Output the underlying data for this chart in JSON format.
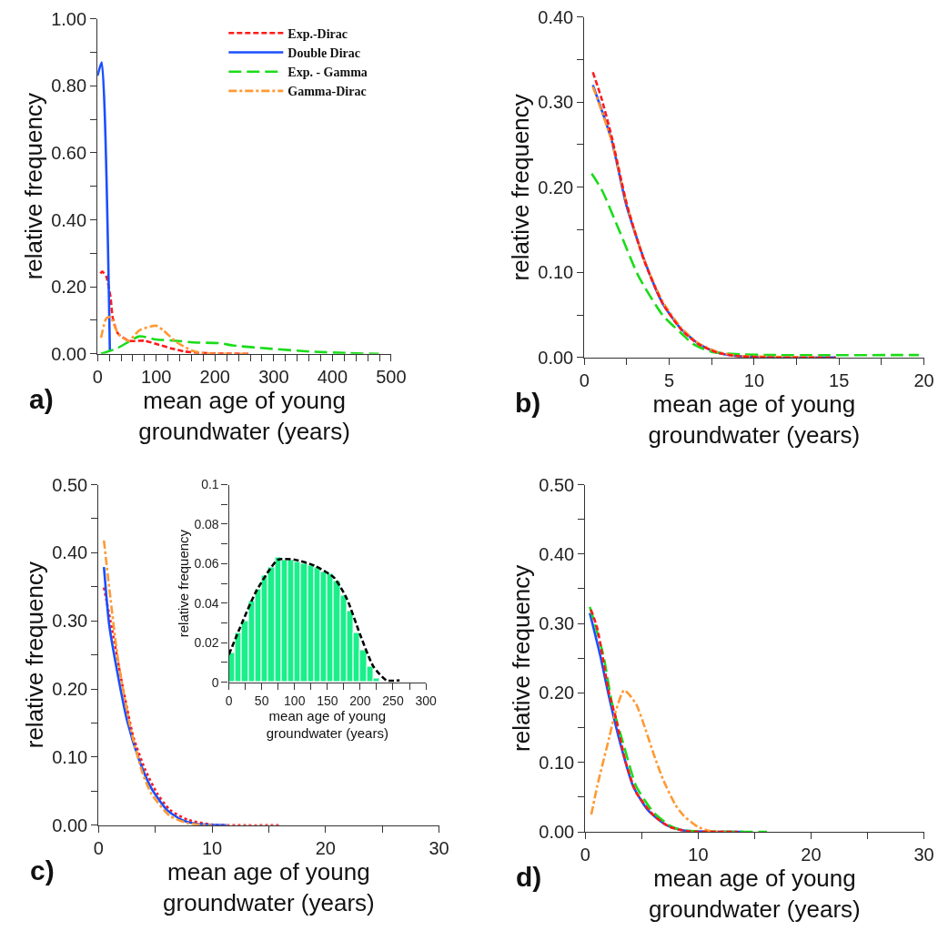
{
  "chart_data": [
    {
      "type": "line",
      "xlabel": "mean age of young groundwater (years)",
      "ylabel": "relative frequency",
      "annotations": [
        "a)"
      ],
      "legend": "top right",
      "marker": "none",
      "xlim": [
        0,
        500
      ],
      "xticks": [
        0,
        {
          "value": 20,
          "label": null
        },
        {
          "value": 40,
          "label": null
        },
        {
          "value": 60,
          "label": null
        },
        {
          "value": 80,
          "label": null
        },
        100,
        {
          "value": 120,
          "label": null
        },
        {
          "value": 140,
          "label": null
        },
        {
          "value": 160,
          "label": null
        },
        {
          "value": 180,
          "label": null
        },
        200,
        {
          "value": 220,
          "label": null
        },
        {
          "value": 240,
          "label": null
        },
        {
          "value": 260,
          "label": null
        },
        {
          "value": 280,
          "label": null
        },
        300,
        {
          "value": 320,
          "label": null
        },
        {
          "value": 340,
          "label": null
        },
        {
          "value": 360,
          "label": null
        },
        {
          "value": 380,
          "label": null
        },
        400,
        {
          "value": 420,
          "label": null
        },
        {
          "value": 440,
          "label": null
        },
        {
          "value": 460,
          "label": null
        },
        {
          "value": 480,
          "label": null
        },
        500
      ],
      "ylim": [
        0,
        1
      ],
      "yticks": [
        {
          "value": 0,
          "label": "0.00"
        },
        {
          "value": 0.1,
          "label": null
        },
        {
          "value": 0.2,
          "label": "0.20"
        },
        {
          "value": 0.3,
          "label": null
        },
        {
          "value": 0.4,
          "label": "0.40"
        },
        {
          "value": 0.5,
          "label": null
        },
        {
          "value": 0.6,
          "label": "0.60"
        },
        {
          "value": 0.7,
          "label": null
        },
        {
          "value": 0.8,
          "label": "0.80"
        },
        {
          "value": 0.9,
          "label": null
        },
        {
          "value": 1,
          "label": "1.00"
        }
      ],
      "series": [
        {
          "name": "Exp.-Dirac",
          "color": "#ff1a1a",
          "line_style": "dashed",
          "x": [
            5,
            8,
            15,
            22,
            26,
            35,
            53,
            80,
            99,
            126,
            148,
            171,
            200,
            257
          ],
          "values": [
            0.24,
            0.246,
            0.23,
            0.17,
            0.106,
            0.06,
            0.039,
            0.039,
            0.03,
            0.016,
            0.007,
            0.003,
            0.001,
            0
          ]
        },
        {
          "name": "Double Dirac",
          "color": "#1a4fff",
          "line_style": "solid",
          "x": [
            0,
            7,
            21
          ],
          "values": [
            0.83,
            0.87,
            0.007
          ]
        },
        {
          "name": "Exp. - Gamma",
          "color": "#1adc1a",
          "line_style": "longdash",
          "x": [
            6,
            35,
            71,
            99,
            135,
            162,
            207,
            230,
            289,
            361,
            429,
            479
          ],
          "values": [
            0,
            0.018,
            0.052,
            0.043,
            0.039,
            0.034,
            0.032,
            0.025,
            0.016,
            0.007,
            0.002,
            0
          ]
        },
        {
          "name": "Gamma-Dirac",
          "color": "#ff9933",
          "line_style": "dashdot",
          "x": [
            6,
            15,
            22,
            35,
            53,
            71,
            99,
            112,
            135,
            162,
            180,
            257
          ],
          "values": [
            0.048,
            0.106,
            0.11,
            0.06,
            0.039,
            0.07,
            0.084,
            0.07,
            0.034,
            0.009,
            0.002,
            0
          ]
        }
      ]
    },
    {
      "type": "line",
      "xlabel": "mean age of young groundwater (years)",
      "ylabel": "relative frequency",
      "annotations": [
        "b)"
      ],
      "marker": "none",
      "xlim": [
        0,
        20
      ],
      "xticks": [
        0,
        {
          "value": 2.5,
          "label": null
        },
        5,
        {
          "value": 7.5,
          "label": null
        },
        10,
        {
          "value": 12.5,
          "label": null
        },
        15,
        {
          "value": 17.5,
          "label": null
        },
        20
      ],
      "ylim": [
        0,
        0.4
      ],
      "yticks": [
        {
          "value": 0,
          "label": "0.00"
        },
        {
          "value": 0.05,
          "label": null
        },
        {
          "value": 0.1,
          "label": "0.10"
        },
        {
          "value": 0.15,
          "label": null
        },
        {
          "value": 0.2,
          "label": "0.20"
        },
        {
          "value": 0.25,
          "label": null
        },
        {
          "value": 0.3,
          "label": "0.30"
        },
        {
          "value": 0.35,
          "label": null
        },
        {
          "value": 0.4,
          "label": "0.40"
        }
      ],
      "series": [
        {
          "color": "#1a4fff",
          "line_style": "solid",
          "x": [
            0.5,
            1.58,
            2.47,
            3.54,
            4.6,
            5.68,
            6.74,
            7.8,
            8.9,
            11,
            14.8
          ],
          "values": [
            0.32,
            0.257,
            0.179,
            0.114,
            0.064,
            0.034,
            0.016,
            0.006,
            0.002,
            0,
            0
          ]
        },
        {
          "color": "#1adc1a",
          "line_style": "longdash",
          "x": [
            0.43,
            1.05,
            2.12,
            3.18,
            4.6,
            5.68,
            6.4,
            7.46,
            8.9,
            11,
            19.7
          ],
          "values": [
            0.216,
            0.196,
            0.146,
            0.096,
            0.05,
            0.029,
            0.016,
            0.007,
            0.004,
            0.003,
            0.003
          ]
        },
        {
          "color": "#ff9933",
          "line_style": "dashdot",
          "x": [
            0.5,
            1.6,
            2.5,
            3.5,
            4.6,
            5.7,
            6.7,
            7.8,
            9,
            11,
            14
          ],
          "values": [
            0.318,
            0.255,
            0.18,
            0.116,
            0.066,
            0.035,
            0.017,
            0.007,
            0.002,
            0.001,
            0
          ]
        },
        {
          "color": "#ff1a1a",
          "line_style": "dashed",
          "x": [
            0.5,
            1.0,
            1.6,
            2.5,
            3.5,
            4.6,
            5.7,
            6.7,
            7.8,
            8.9,
            11,
            14.8
          ],
          "values": [
            0.335,
            0.305,
            0.26,
            0.18,
            0.115,
            0.064,
            0.033,
            0.016,
            0.006,
            0.002,
            0,
            0
          ]
        }
      ]
    },
    {
      "type": "line",
      "xlabel": "mean age of young groundwater (years)",
      "ylabel": "relative frequency",
      "annotations": [
        "c)"
      ],
      "marker": "none",
      "xlim": [
        0,
        30
      ],
      "xticks": [
        0,
        {
          "value": 5,
          "label": null
        },
        10,
        {
          "value": 15,
          "label": null
        },
        20,
        {
          "value": 25,
          "label": null
        },
        30
      ],
      "ylim": [
        0,
        0.5
      ],
      "yticks": [
        {
          "value": 0,
          "label": "0.00"
        },
        {
          "value": 0.05,
          "label": null
        },
        {
          "value": 0.1,
          "label": "0.10"
        },
        {
          "value": 0.15,
          "label": null
        },
        {
          "value": 0.2,
          "label": "0.20"
        },
        {
          "value": 0.25,
          "label": null
        },
        {
          "value": 0.3,
          "label": "0.30"
        },
        {
          "value": 0.35,
          "label": null
        },
        {
          "value": 0.4,
          "label": "0.40"
        },
        {
          "value": 0.45,
          "label": null
        },
        {
          "value": 0.5,
          "label": "0.50"
        }
      ],
      "series": [
        {
          "color": "#ff1a1a",
          "line_style": "dotted",
          "x": [
            0.48,
            1.2,
            2,
            3.07,
            4.13,
            5.2,
            6.27,
            7.87,
            10,
            16.1
          ],
          "values": [
            0.349,
            0.287,
            0.215,
            0.13,
            0.081,
            0.046,
            0.023,
            0.008,
            0.001,
            0
          ]
        },
        {
          "color": "#1a4fff",
          "line_style": "solid",
          "x": [
            0.48,
            0.93,
            1.47,
            2.53,
            3.6,
            4.67,
            6,
            7.33,
            8.67,
            11.3
          ],
          "values": [
            0.379,
            0.296,
            0.242,
            0.153,
            0.095,
            0.054,
            0.023,
            0.008,
            0.002,
            0
          ]
        },
        {
          "color": "#ff9933",
          "line_style": "dashdot",
          "x": [
            0.48,
            1.07,
            1.73,
            2.8,
            3.87,
            4.67,
            6.27,
            7.87,
            10
          ],
          "values": [
            0.418,
            0.331,
            0.242,
            0.144,
            0.077,
            0.046,
            0.014,
            0.003,
            0
          ]
        }
      ]
    },
    {
      "type": "histogram",
      "xlabel": "mean age of young groundwater (years)",
      "ylabel": "relative frequency",
      "color": "#1aef8a",
      "bins": [
        0,
        10,
        20,
        30,
        40,
        50,
        60,
        70,
        80,
        90,
        100,
        110,
        120,
        130,
        140,
        150,
        160,
        170,
        180,
        190,
        200,
        210,
        220,
        230
      ],
      "values": [
        0.015,
        0.025,
        0.031,
        0.041,
        0.047,
        0.054,
        0.058,
        0.063,
        0.062,
        0.062,
        0.061,
        0.06,
        0.059,
        0.058,
        0.056,
        0.055,
        0.051,
        0.044,
        0.036,
        0.025,
        0.016,
        0.008,
        0.002
      ],
      "xlim": [
        0,
        300
      ],
      "xticks": [
        0,
        {
          "value": 25,
          "label": null
        },
        50,
        {
          "value": 75,
          "label": null
        },
        100,
        {
          "value": 125,
          "label": null
        },
        150,
        {
          "value": 175,
          "label": null
        },
        200,
        {
          "value": 225,
          "label": null
        },
        250,
        {
          "value": 275,
          "label": null
        },
        300
      ],
      "ylim": [
        0,
        0.1
      ],
      "yticks": [
        0,
        {
          "value": 0.01,
          "label": null
        },
        0.02,
        {
          "value": 0.03,
          "label": null
        },
        0.04,
        {
          "value": 0.05,
          "label": null
        },
        0.06,
        {
          "value": 0.07,
          "label": null
        },
        0.08,
        {
          "value": 0.09,
          "label": null
        },
        0.1
      ],
      "series": [
        {
          "type": "line",
          "color": "#000000",
          "line_style": "dashed",
          "x": [
            0,
            20,
            40,
            60,
            75,
            100,
            130,
            160,
            180,
            200,
            220,
            240,
            260
          ],
          "values": [
            0.014,
            0.03,
            0.045,
            0.056,
            0.062,
            0.062,
            0.059,
            0.053,
            0.042,
            0.024,
            0.008,
            0.001,
            0.001
          ]
        }
      ]
    },
    {
      "type": "line",
      "xlabel": "mean age of young groundwater (years)",
      "ylabel": "relative frequency",
      "annotations": [
        "d)"
      ],
      "marker": "none",
      "xlim": [
        0,
        30
      ],
      "xticks": [
        0,
        {
          "value": 5,
          "label": null
        },
        10,
        {
          "value": 15,
          "label": null
        },
        20,
        {
          "value": 25,
          "label": null
        },
        30
      ],
      "ylim": [
        0,
        0.5
      ],
      "yticks": [
        {
          "value": 0,
          "label": "0.00"
        },
        {
          "value": 0.05,
          "label": null
        },
        {
          "value": 0.1,
          "label": "0.10"
        },
        {
          "value": 0.15,
          "label": null
        },
        {
          "value": 0.2,
          "label": "0.20"
        },
        {
          "value": 0.25,
          "label": null
        },
        {
          "value": 0.3,
          "label": "0.30"
        },
        {
          "value": 0.35,
          "label": null
        },
        {
          "value": 0.4,
          "label": "0.40"
        },
        {
          "value": 0.45,
          "label": null
        },
        {
          "value": 0.5,
          "label": "0.50"
        }
      ],
      "series": [
        {
          "color": "#1a4fff",
          "line_style": "solid",
          "x": [
            0.4,
            1.32,
            2.12,
            3.17,
            4.23,
            5.56,
            7.14,
            8.73,
            11.4,
            14
          ],
          "values": [
            0.315,
            0.254,
            0.193,
            0.123,
            0.066,
            0.031,
            0.01,
            0.002,
            0,
            0
          ]
        },
        {
          "color": "#1adc1a",
          "line_style": "longdash",
          "x": [
            0.4,
            1.6,
            2.38,
            3.44,
            4.5,
            6.1,
            7.7,
            8.7,
            16.1
          ],
          "values": [
            0.324,
            0.254,
            0.184,
            0.123,
            0.066,
            0.027,
            0.007,
            0.002,
            0
          ]
        },
        {
          "color": "#ff9933",
          "line_style": "dashdot",
          "x": [
            0.53,
            1.06,
            2.12,
            2.65,
            3.44,
            4.5,
            5.3,
            6.1,
            6.9,
            7.94,
            8.73,
            10,
            11.1,
            12.4
          ],
          "values": [
            0.025,
            0.066,
            0.136,
            0.171,
            0.204,
            0.184,
            0.149,
            0.11,
            0.075,
            0.04,
            0.023,
            0.007,
            0.001,
            0
          ]
        },
        {
          "color": "#ff1a1a",
          "line_style": "dashed",
          "x": [
            0.5,
            1.06,
            2.1,
            2.65,
            3.57,
            4.5,
            6.1,
            7.5,
            9,
            13.5
          ],
          "values": [
            0.32,
            0.293,
            0.2,
            0.167,
            0.101,
            0.057,
            0.023,
            0.007,
            0.001,
            0
          ]
        }
      ]
    }
  ]
}
